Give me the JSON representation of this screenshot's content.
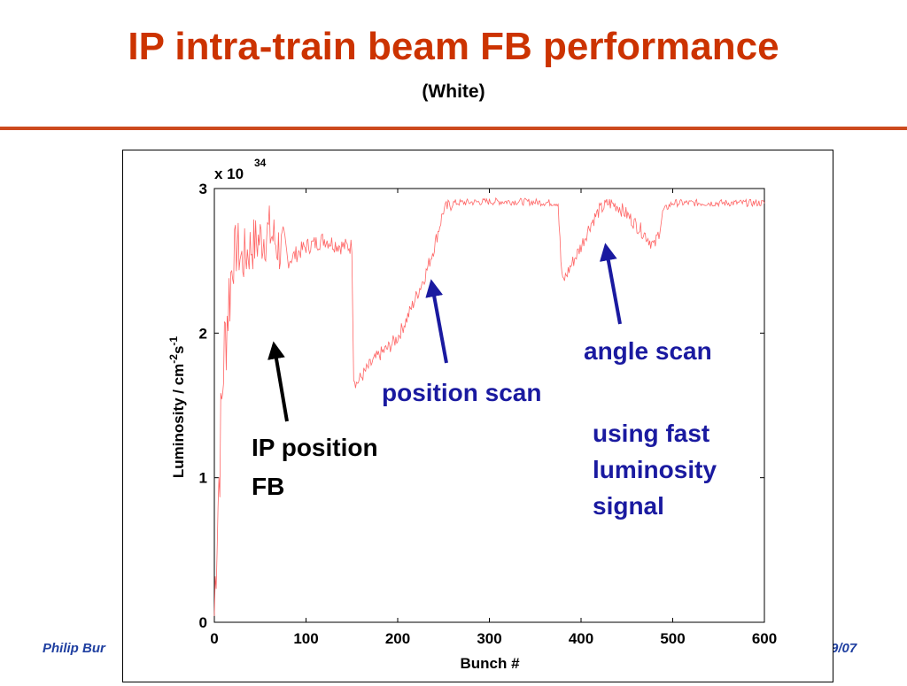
{
  "slide": {
    "title": "IP intra-train beam FB performance",
    "subtitle": "(White)",
    "footer_left": "Philip Bur",
    "footer_right": "9/07"
  },
  "chart_data": {
    "type": "line",
    "xlabel": "Bunch #",
    "ylabel_main": "Luminosity / cm",
    "ylabel_exp1": "-2",
    "ylabel_mid": "s",
    "ylabel_exp2": "-1",
    "y_multiplier_base": "x 10",
    "y_multiplier_exp": "34",
    "xlim": [
      0,
      600
    ],
    "ylim": [
      0,
      3
    ],
    "xticks": [
      "0",
      "100",
      "200",
      "300",
      "400",
      "500",
      "600"
    ],
    "yticks": [
      "0",
      "1",
      "2",
      "3"
    ],
    "series_color": "#ff6666",
    "keypoints": [
      [
        0,
        0.05
      ],
      [
        2,
        0.5
      ],
      [
        5,
        1.0
      ],
      [
        10,
        1.8
      ],
      [
        15,
        2.2
      ],
      [
        20,
        2.5
      ],
      [
        25,
        2.6
      ],
      [
        30,
        2.5
      ],
      [
        40,
        2.6
      ],
      [
        50,
        2.65
      ],
      [
        60,
        2.7
      ],
      [
        70,
        2.6
      ],
      [
        80,
        2.5
      ],
      [
        90,
        2.55
      ],
      [
        100,
        2.6
      ],
      [
        110,
        2.62
      ],
      [
        120,
        2.65
      ],
      [
        130,
        2.62
      ],
      [
        140,
        2.6
      ],
      [
        150,
        2.6
      ],
      [
        152,
        1.7
      ],
      [
        155,
        1.65
      ],
      [
        170,
        1.78
      ],
      [
        180,
        1.85
      ],
      [
        190,
        1.9
      ],
      [
        200,
        1.97
      ],
      [
        210,
        2.1
      ],
      [
        220,
        2.25
      ],
      [
        230,
        2.4
      ],
      [
        240,
        2.6
      ],
      [
        250,
        2.85
      ],
      [
        260,
        2.9
      ],
      [
        300,
        2.91
      ],
      [
        330,
        2.91
      ],
      [
        375,
        2.9
      ],
      [
        378,
        2.5
      ],
      [
        380,
        2.35
      ],
      [
        390,
        2.48
      ],
      [
        400,
        2.6
      ],
      [
        410,
        2.75
      ],
      [
        420,
        2.85
      ],
      [
        430,
        2.9
      ],
      [
        440,
        2.88
      ],
      [
        450,
        2.82
      ],
      [
        460,
        2.75
      ],
      [
        470,
        2.68
      ],
      [
        480,
        2.6
      ],
      [
        485,
        2.7
      ],
      [
        490,
        2.85
      ],
      [
        500,
        2.9
      ],
      [
        600,
        2.9
      ]
    ],
    "annotations": [
      {
        "text_lines": [
          "IP position",
          "FB"
        ],
        "color": "#000000",
        "arrow_color": "#000000",
        "arrow_to": [
          65,
          1.92
        ]
      },
      {
        "text_lines": [
          "position scan"
        ],
        "color": "#1a1aa0",
        "arrow_color": "#1a1aa0",
        "arrow_to": [
          237,
          2.35
        ]
      },
      {
        "text_lines": [
          "angle scan"
        ],
        "color": "#1a1aa0",
        "arrow_color": "#1a1aa0",
        "arrow_to": [
          427,
          2.6
        ]
      },
      {
        "text_lines": [
          "using fast",
          "luminosity",
          "signal"
        ],
        "color": "#1a1aa0"
      }
    ]
  }
}
